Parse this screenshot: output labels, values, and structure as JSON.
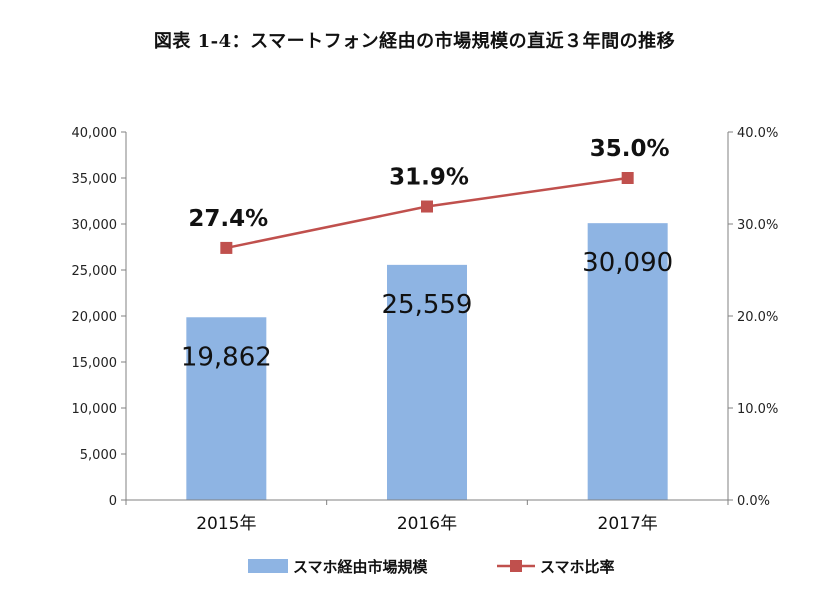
{
  "figure": {
    "title": "図表 1-4：スマートフォン経由の市場規模の直近３年間の推移"
  },
  "chart_data": {
    "type": "bar",
    "categories": [
      "2015年",
      "2016年",
      "2017年"
    ],
    "series": [
      {
        "name": "スマホ経由市場規模",
        "type": "bar",
        "axis": "left",
        "values": [
          19862,
          25559,
          30090
        ],
        "labels": [
          "19,862",
          "25,559",
          "30,090"
        ],
        "color": "#8EB4E3"
      },
      {
        "name": "スマホ比率",
        "type": "line",
        "axis": "right",
        "values": [
          27.4,
          31.9,
          35.0
        ],
        "labels": [
          "27.4%",
          "31.9%",
          "35.0%"
        ],
        "color": "#C0504D"
      }
    ],
    "y_left": {
      "ylim": [
        0,
        40000
      ],
      "ticks": [
        0,
        5000,
        10000,
        15000,
        20000,
        25000,
        30000,
        35000,
        40000
      ],
      "tick_labels": [
        "0",
        "5,000",
        "10,000",
        "15,000",
        "20,000",
        "25,000",
        "30,000",
        "35,000",
        "40,000"
      ]
    },
    "y_right": {
      "ylim": [
        0,
        40
      ],
      "ticks": [
        0,
        10,
        20,
        30,
        40
      ],
      "tick_labels": [
        "0.0%",
        "10.0%",
        "20.0%",
        "30.0%",
        "40.0%"
      ]
    },
    "grid": false,
    "legend_position": "bottom",
    "title": "",
    "xlabel": "",
    "ylabel": ""
  }
}
